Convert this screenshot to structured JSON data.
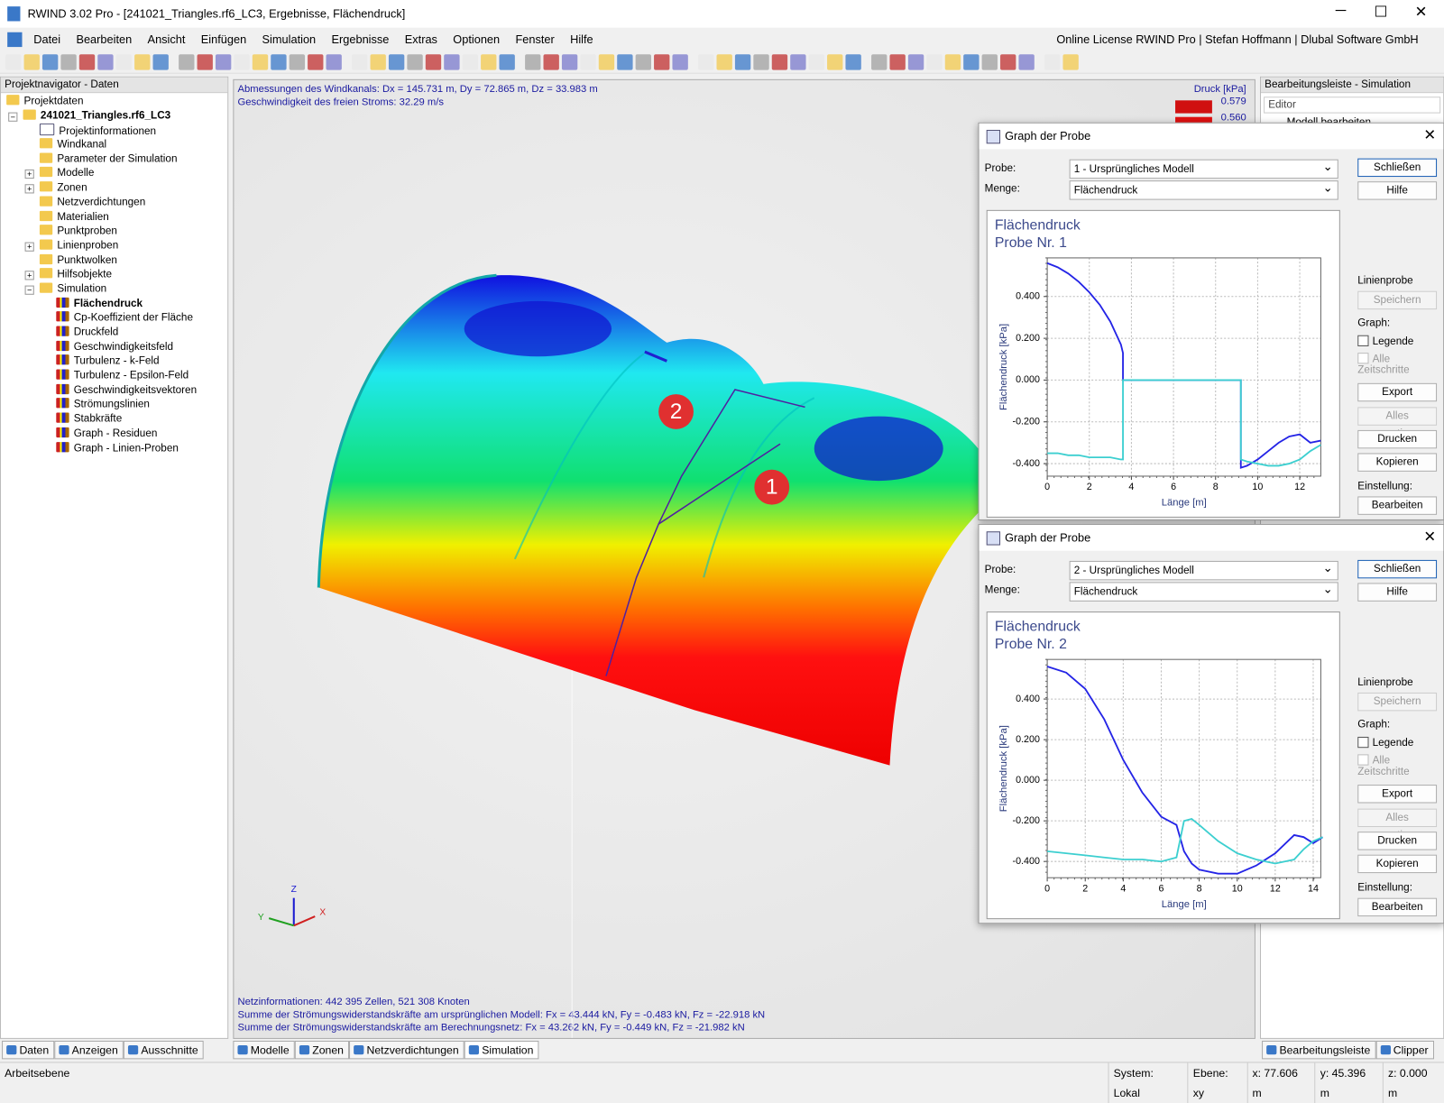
{
  "window": {
    "title": "RWIND 3.02 Pro - [241021_Triangles.rf6_LC3, Ergebnisse, Flächendruck]",
    "menu": [
      "Datei",
      "Bearbeiten",
      "Ansicht",
      "Einfügen",
      "Simulation",
      "Ergebnisse",
      "Extras",
      "Optionen",
      "Fenster",
      "Hilfe"
    ],
    "license": "Online License RWIND Pro | Stefan Hoffmann | Dlubal Software GmbH"
  },
  "navigator": {
    "title": "Projektnavigator - Daten",
    "tree": {
      "label": "Projektdaten",
      "children": [
        {
          "label": "241021_Triangles.rf6_LC3",
          "children": [
            {
              "label": "Projektinformationen"
            },
            {
              "label": "Windkanal"
            },
            {
              "label": "Parameter der Simulation"
            },
            {
              "label": "Modelle"
            },
            {
              "label": "Zonen"
            },
            {
              "label": "Netzverdichtungen"
            },
            {
              "label": "Materialien"
            },
            {
              "label": "Punktproben"
            },
            {
              "label": "Linienproben"
            },
            {
              "label": "Punktwolken"
            },
            {
              "label": "Hilfsobjekte"
            },
            {
              "label": "Simulation",
              "children": [
                {
                  "label": "Flächendruck"
                },
                {
                  "label": "Cp-Koeffizient der Fläche"
                },
                {
                  "label": "Druckfeld"
                },
                {
                  "label": "Geschwindigkeitsfeld"
                },
                {
                  "label": "Turbulenz - k-Feld"
                },
                {
                  "label": "Turbulenz - Epsilon-Feld"
                },
                {
                  "label": "Geschwindigkeitsvektoren"
                },
                {
                  "label": "Strömungslinien"
                },
                {
                  "label": "Stabkräfte"
                },
                {
                  "label": "Graph - Residuen"
                },
                {
                  "label": "Graph - Linien-Proben"
                }
              ]
            }
          ]
        }
      ]
    },
    "tabs": [
      "Daten",
      "Anzeigen",
      "Ausschnitte"
    ]
  },
  "viewport": {
    "info_top": [
      "Abmessungen des Windkanals: Dx = 145.731 m, Dy = 72.865 m, Dz = 33.983 m",
      "Geschwindigkeit des freien Stroms: 32.29 m/s"
    ],
    "info_bottom": [
      "Netzinformationen: 442 395 Zellen, 521 308 Knoten",
      "Summe der Strömungswiderstandskräfte am ursprünglichen Modell: Fx = 43.444 kN, Fy = -0.483 kN, Fz = -22.918 kN",
      "Summe der Strömungswiderstandskräfte am Berechnungsnetz: Fx = 43.262 kN, Fy = -0.449 kN, Fz = -21.982 kN"
    ],
    "legend_title": "Druck [kPa]",
    "legend_values": [
      "0.579",
      "0.560"
    ],
    "markers": [
      "1",
      "2"
    ],
    "axes": {
      "z": "Z",
      "y": "Y",
      "x": "X"
    },
    "tabs": [
      "Modelle",
      "Zonen",
      "Netzverdichtungen",
      "Simulation"
    ]
  },
  "editor": {
    "title": "Bearbeitungsleiste - Simulation",
    "dropdown": "Editor",
    "item": "Modell bearbeiten",
    "tabs": [
      "Bearbeitungsleiste",
      "Clipper"
    ]
  },
  "dialogs": [
    {
      "title": "Graph der Probe",
      "probe_label": "Probe:",
      "probe": "1 - Ursprüngliches Modell",
      "menge_label": "Menge:",
      "menge": "Flächendruck",
      "buttons": {
        "close": "Schließen",
        "help": "Hilfe",
        "line_probe": "Linienprobe",
        "save": "Speichern",
        "graph": "Graph:",
        "legend": "Legende",
        "all_steps": "Alle Zeitschritte",
        "export": "Export",
        "export_all": "Alles exportieren",
        "print": "Drucken",
        "copy": "Kopieren",
        "setting": "Einstellung:",
        "edit": "Bearbeiten"
      },
      "chart": {
        "type": "line",
        "title": [
          "Flächendruck",
          "Probe Nr. 1"
        ],
        "xlabel": "Länge [m]",
        "ylabel": "Flächendruck [kPa]",
        "x": [
          0,
          0.5,
          1,
          1.5,
          2,
          2.5,
          3,
          3.5,
          3.6,
          3.6,
          5,
          7,
          9.2,
          9.2,
          9.5,
          10,
          10.5,
          11,
          11.5,
          12,
          12.5,
          13
        ],
        "series": [
          {
            "color": "#2424e6",
            "values": [
              0.56,
              0.54,
              0.51,
              0.47,
              0.42,
              0.36,
              0.28,
              0.17,
              0.13,
              0,
              0,
              0,
              0,
              -0.42,
              -0.41,
              -0.38,
              -0.34,
              -0.3,
              -0.27,
              -0.26,
              -0.3,
              -0.29
            ]
          },
          {
            "color": "#3ccfd0",
            "values": [
              -0.35,
              -0.35,
              -0.36,
              -0.36,
              -0.37,
              -0.37,
              -0.37,
              -0.38,
              -0.38,
              0,
              0,
              0,
              0,
              -0.38,
              -0.39,
              -0.4,
              -0.41,
              -0.41,
              -0.4,
              -0.38,
              -0.34,
              -0.31
            ]
          }
        ],
        "xlim": [
          0,
          13
        ],
        "xticks": [
          0,
          2,
          4,
          6,
          8,
          10,
          12
        ],
        "ylim": [
          -0.46,
          0.585
        ],
        "yticks": [
          {
            "value": -0.4,
            "label": "-0.400"
          },
          {
            "value": -0.2,
            "label": "-0.200"
          },
          {
            "value": 0,
            "label": "0.000"
          },
          {
            "value": 0.2,
            "label": "0.200"
          },
          {
            "value": 0.4,
            "label": "0.400"
          }
        ],
        "grid": true
      }
    },
    {
      "title": "Graph der Probe",
      "probe_label": "Probe:",
      "probe": "2 - Ursprüngliches Modell",
      "menge_label": "Menge:",
      "menge": "Flächendruck",
      "buttons": {
        "close": "Schließen",
        "help": "Hilfe",
        "line_probe": "Linienprobe",
        "save": "Speichern",
        "graph": "Graph:",
        "legend": "Legende",
        "all_steps": "Alle Zeitschritte",
        "export": "Export",
        "export_all": "Alles exportieren",
        "print": "Drucken",
        "copy": "Kopieren",
        "setting": "Einstellung:",
        "edit": "Bearbeiten"
      },
      "chart": {
        "type": "line",
        "title": [
          "Flächendruck",
          "Probe Nr. 2"
        ],
        "xlabel": "Länge [m]",
        "ylabel": "Flächendruck [kPa]",
        "x": [
          0,
          1,
          2,
          3,
          4,
          5,
          6,
          6.8,
          7.2,
          7.6,
          8,
          9,
          10,
          11,
          12,
          13,
          13.5,
          14,
          14.5
        ],
        "series": [
          {
            "color": "#2424e6",
            "values": [
              0.56,
              0.53,
              0.45,
              0.3,
              0.1,
              -0.06,
              -0.18,
              -0.22,
              -0.35,
              -0.41,
              -0.44,
              -0.46,
              -0.46,
              -0.42,
              -0.36,
              -0.27,
              -0.28,
              -0.31,
              -0.28
            ]
          },
          {
            "color": "#3ccfd0",
            "values": [
              -0.35,
              -0.36,
              -0.37,
              -0.38,
              -0.39,
              -0.39,
              -0.4,
              -0.38,
              -0.2,
              -0.19,
              -0.22,
              -0.3,
              -0.36,
              -0.39,
              -0.41,
              -0.39,
              -0.34,
              -0.3,
              -0.28
            ]
          }
        ],
        "xlim": [
          0,
          14.4
        ],
        "xticks": [
          0,
          2,
          4,
          6,
          8,
          10,
          12,
          14
        ],
        "ylim": [
          -0.48,
          0.595
        ],
        "yticks": [
          {
            "value": -0.4,
            "label": "-0.400"
          },
          {
            "value": -0.2,
            "label": "-0.200"
          },
          {
            "value": 0,
            "label": "0.000"
          },
          {
            "value": 0.2,
            "label": "0.200"
          },
          {
            "value": 0.4,
            "label": "0.400"
          }
        ],
        "grid": true
      }
    }
  ],
  "status": {
    "left": "Arbeitsebene",
    "items": [
      "System: Lokal",
      "Ebene: xy",
      "x: 77.606 m",
      "y: 45.396 m",
      "z: 0.000 m"
    ]
  }
}
